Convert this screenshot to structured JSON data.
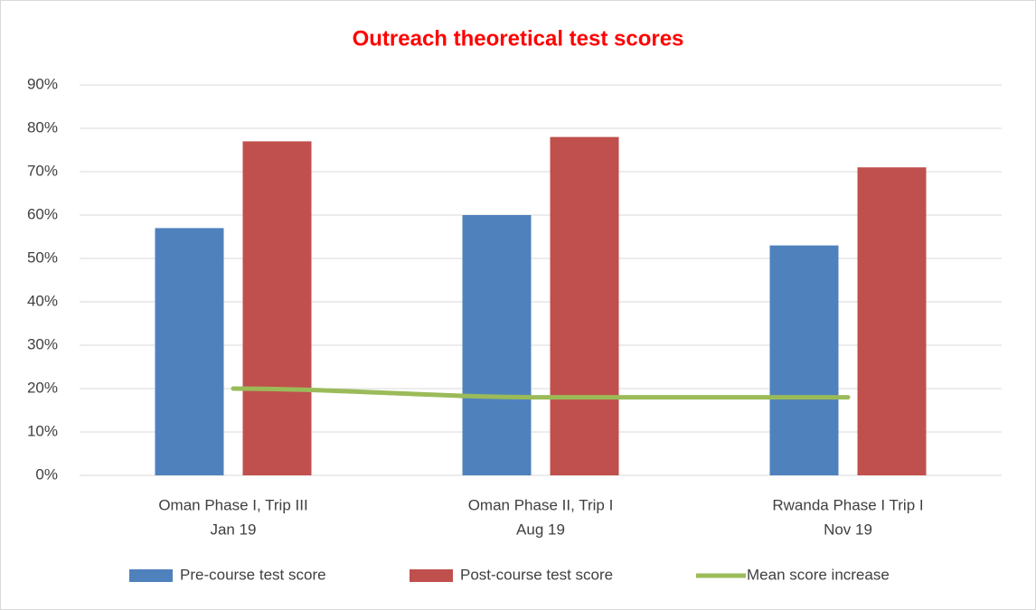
{
  "chart_data": {
    "type": "bar_line",
    "title": "Outreach theoretical test scores",
    "categories": [
      [
        "Oman Phase I, Trip III",
        "Jan 19"
      ],
      [
        "Oman Phase II, Trip I",
        "Aug 19"
      ],
      [
        "Rwanda Phase I Trip I",
        "Nov 19"
      ]
    ],
    "series": [
      {
        "name": "Pre-course test score",
        "color": "#4f81bd",
        "type": "bar",
        "values": [
          57,
          60,
          53
        ]
      },
      {
        "name": "Post-course test score",
        "color": "#c0504d",
        "type": "bar",
        "values": [
          77,
          78,
          71
        ]
      },
      {
        "name": "Mean score increase",
        "color": "#9bbb59",
        "type": "line",
        "values": [
          20,
          18,
          18
        ]
      }
    ],
    "ylim": [
      0,
      90
    ],
    "yticks": [
      {
        "value": 0,
        "label": "0%"
      },
      {
        "value": 10,
        "label": "10%"
      },
      {
        "value": 20,
        "label": "20%"
      },
      {
        "value": 30,
        "label": "30%"
      },
      {
        "value": 40,
        "label": "40%"
      },
      {
        "value": 50,
        "label": "50%"
      },
      {
        "value": 60,
        "label": "60%"
      },
      {
        "value": 70,
        "label": "70%"
      },
      {
        "value": 80,
        "label": "80%"
      },
      {
        "value": 90,
        "label": "90%"
      }
    ],
    "grid": true,
    "legend": "bottom"
  }
}
